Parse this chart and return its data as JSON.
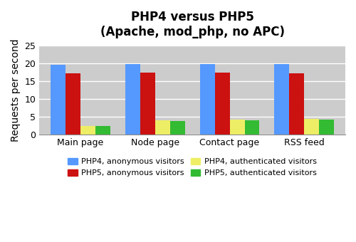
{
  "title": "PHP4 versus PHP5\n(Apache, mod_php, no APC)",
  "ylabel": "Requests per second",
  "categories": [
    "Main page",
    "Node page",
    "Contact page",
    "RSS feed"
  ],
  "series": {
    "PHP4, anonymous visitors": [
      19.6,
      19.7,
      19.8,
      19.7
    ],
    "PHP5, anonymous visitors": [
      17.2,
      17.3,
      17.3,
      17.2
    ],
    "PHP4, authenticated visitors": [
      2.4,
      4.0,
      4.2,
      4.4
    ],
    "PHP5, authenticated visitors": [
      2.4,
      3.8,
      4.1,
      4.2
    ]
  },
  "colors": {
    "PHP4, anonymous visitors": "#5599ff",
    "PHP5, anonymous visitors": "#cc1111",
    "PHP4, authenticated visitors": "#eeee66",
    "PHP5, authenticated visitors": "#33bb33"
  },
  "ylim": [
    0,
    25
  ],
  "yticks": [
    0,
    5,
    10,
    15,
    20,
    25
  ],
  "plot_bg_color": "#cccccc",
  "fig_bg_color": "#ffffff",
  "legend_ncol": 2,
  "bar_width": 0.2,
  "title_fontsize": 12,
  "tick_fontsize": 9,
  "ylabel_fontsize": 10,
  "legend_fontsize": 8
}
